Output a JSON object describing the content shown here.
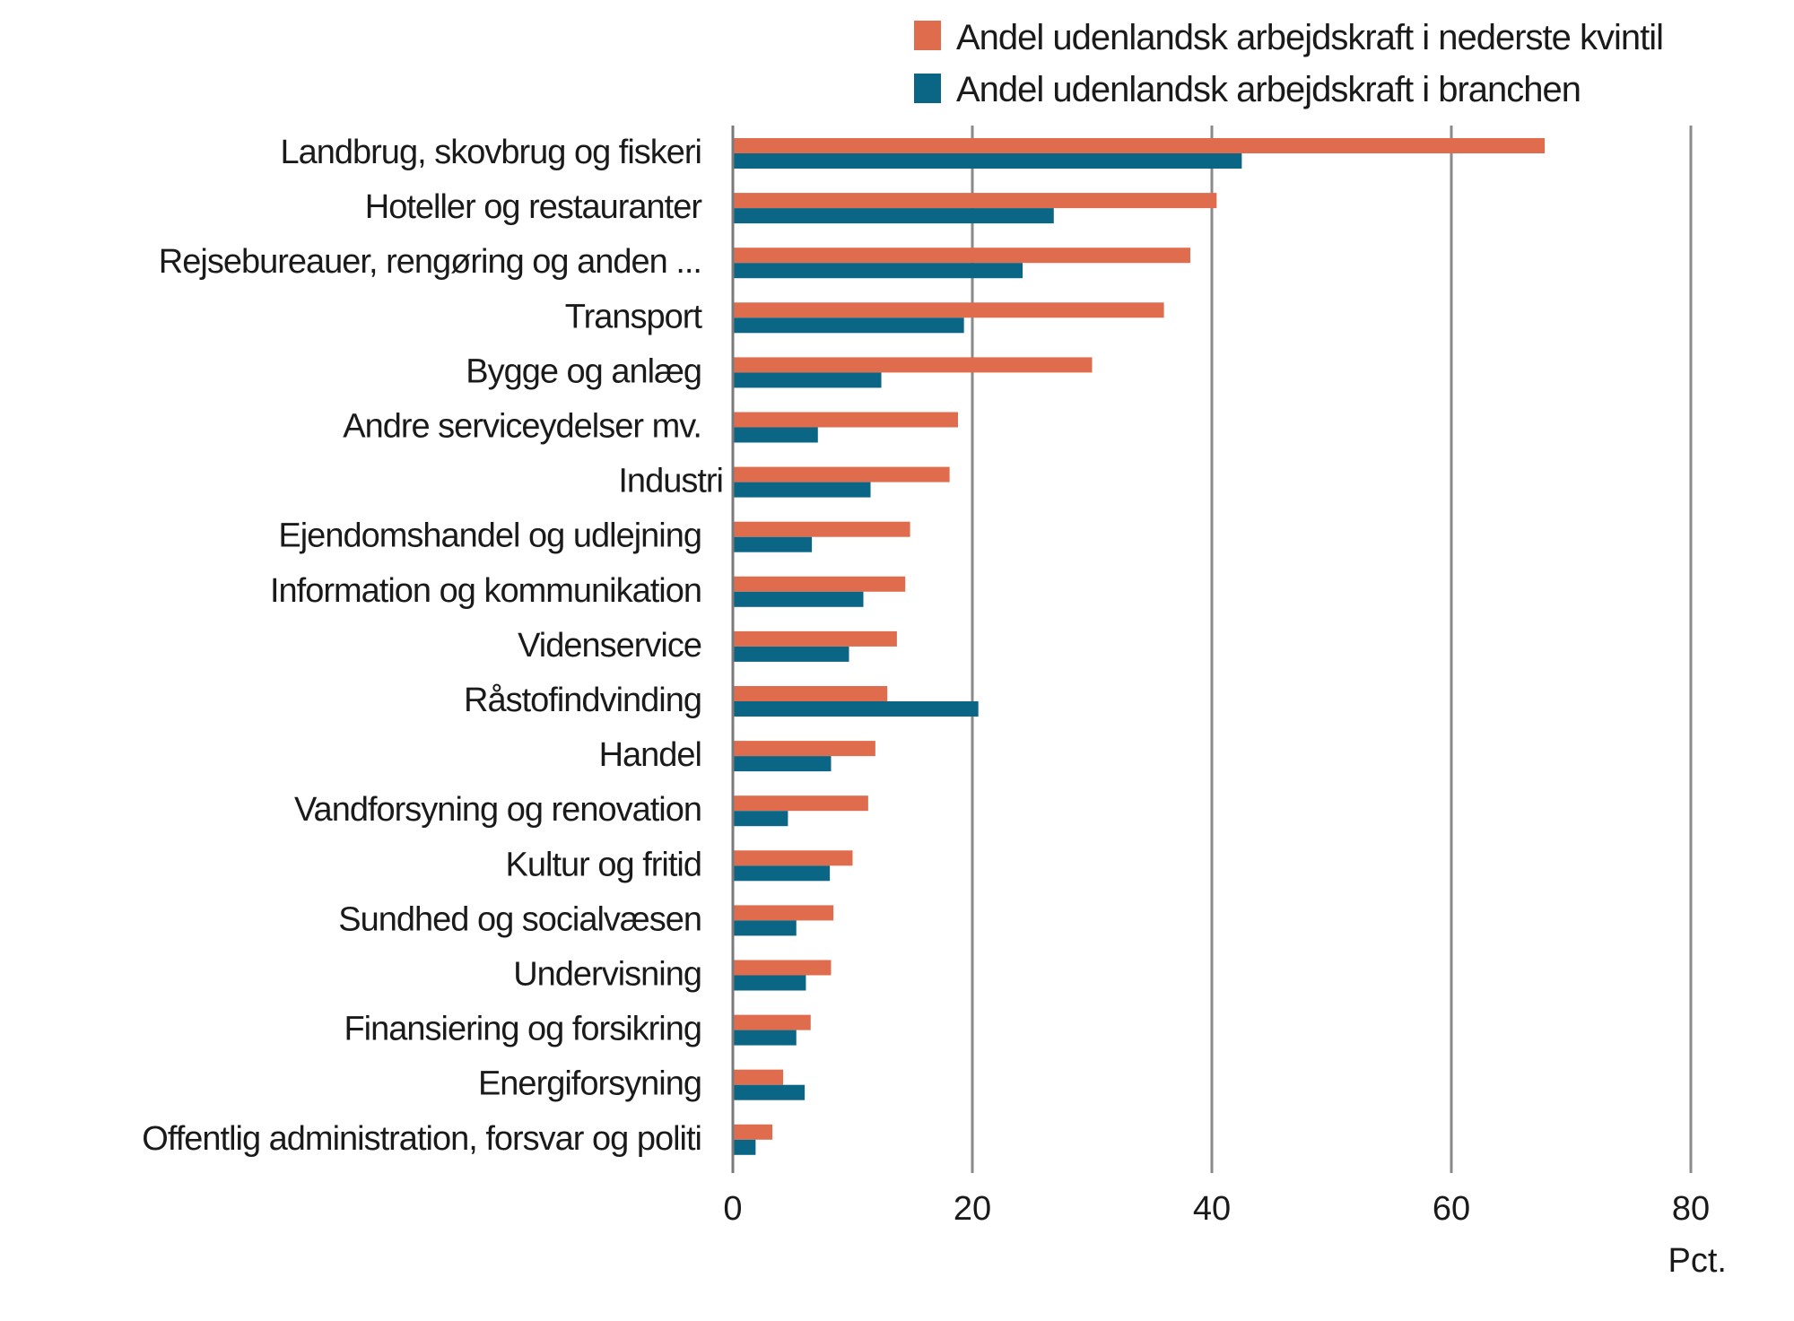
{
  "chart_data": {
    "type": "bar",
    "orientation": "horizontal",
    "categories": [
      "Landbrug, skovbrug og fiskeri",
      "Hoteller og restauranter",
      "Rejsebureauer, rengøring og anden ...",
      "Transport",
      "Bygge og anlæg",
      "Andre serviceydelser  mv.",
      "Industri",
      "Ejendomshandel og udlejning",
      "Information og kommunikation",
      "Videnservice",
      "Råstofindvinding",
      "Handel",
      "Vandforsyning og renovation",
      "Kultur og fritid",
      "Sundhed og socialvæsen",
      "Undervisning",
      "Finansiering og forsikring",
      "Energiforsyning",
      "Offentlig administration, forsvar og politi"
    ],
    "series": [
      {
        "name": "Andel udenlandsk arbejdskraft i nederste kvintil",
        "color": "#e06c4e",
        "values": [
          67.8,
          40.4,
          38.2,
          36.0,
          30.0,
          18.8,
          18.1,
          14.8,
          14.4,
          13.7,
          12.9,
          11.9,
          11.3,
          10.0,
          8.4,
          8.2,
          6.5,
          4.2,
          3.3
        ]
      },
      {
        "name": "Andel udenlandsk arbejdskraft i branchen",
        "color": "#0b6685",
        "values": [
          42.5,
          26.8,
          24.2,
          19.3,
          12.4,
          7.1,
          11.5,
          6.6,
          10.9,
          9.7,
          20.5,
          8.2,
          4.6,
          8.1,
          5.3,
          6.1,
          5.3,
          6.0,
          1.9
        ]
      }
    ],
    "xlim": [
      0,
      80
    ],
    "xticks": [
      "0",
      "20",
      "40",
      "60",
      "80"
    ],
    "xlabel": "Pct.",
    "grid": true,
    "legend_position": "top-right"
  }
}
